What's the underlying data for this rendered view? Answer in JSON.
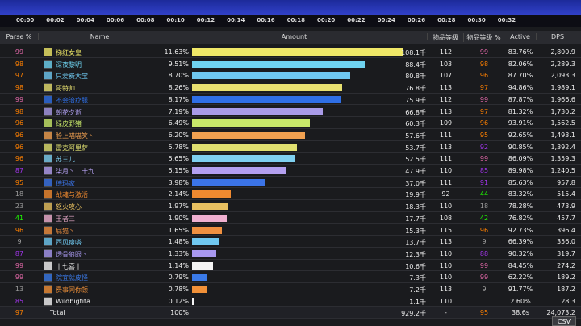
{
  "timeline": {
    "ticks": [
      "00:00",
      "00:02",
      "00:04",
      "00:06",
      "00:08",
      "00:10",
      "00:12",
      "00:14",
      "00:16",
      "00:18",
      "00:20",
      "00:22",
      "00:24",
      "00:26",
      "00:28",
      "00:30",
      "00:32"
    ]
  },
  "table": {
    "headers": [
      "Parse %",
      "Name",
      "Amount",
      "物品等级",
      "物品等级 %",
      "Active",
      "DPS"
    ],
    "rows": [
      {
        "parse": 99,
        "name": "梯红女皇",
        "pct": "11.63%",
        "amount": "108.1千",
        "ilvl": 112,
        "ilvl_pct": 99,
        "active": "83.76%",
        "dps": "2,800.9",
        "color": "#f0e868"
      },
      {
        "parse": 98,
        "name": "深夜黎明",
        "pct": "9.51%",
        "amount": "88.4千",
        "ilvl": 103,
        "ilvl_pct": 98,
        "active": "82.06%",
        "dps": "2,289.3",
        "color": "#6fd3f0"
      },
      {
        "parse": 97,
        "name": "只爱费大宝",
        "pct": "8.70%",
        "amount": "80.8千",
        "ilvl": 107,
        "ilvl_pct": 96,
        "active": "87.70%",
        "dps": "2,093.3",
        "color": "#6fc8f0"
      },
      {
        "parse": 98,
        "name": "哥特帅",
        "pct": "8.26%",
        "amount": "76.8千",
        "ilvl": 113,
        "ilvl_pct": 97,
        "active": "94.86%",
        "dps": "1,989.1",
        "color": "#e8e070"
      },
      {
        "parse": 99,
        "name": "不会治疗服",
        "pct": "8.17%",
        "amount": "75.9千",
        "ilvl": 112,
        "ilvl_pct": 99,
        "active": "87.87%",
        "dps": "1,966.6",
        "color": "#2f6fe6"
      },
      {
        "parse": 98,
        "name": "朝花夕逝",
        "pct": "7.19%",
        "amount": "66.8千",
        "ilvl": 113,
        "ilvl_pct": 97,
        "active": "81.32%",
        "dps": "1,730.2",
        "color": "#a99be8"
      },
      {
        "parse": 96,
        "name": "绿皮野猪",
        "pct": "6.49%",
        "amount": "60.3千",
        "ilvl": 109,
        "ilvl_pct": 96,
        "active": "93.91%",
        "dps": "1,562.5",
        "color": "#c8e86a"
      },
      {
        "parse": 96,
        "name": "脸上喵喵笑丶",
        "pct": "6.20%",
        "amount": "57.6千",
        "ilvl": 111,
        "ilvl_pct": 95,
        "active": "92.65%",
        "dps": "1,493.1",
        "color": "#f0a050"
      },
      {
        "parse": 96,
        "name": "雷克阿里萨",
        "pct": "5.78%",
        "amount": "53.7千",
        "ilvl": 113,
        "ilvl_pct": 92,
        "active": "90.85%",
        "dps": "1,392.4",
        "color": "#e0e070"
      },
      {
        "parse": 96,
        "name": "苏三儿",
        "pct": "5.65%",
        "amount": "52.5千",
        "ilvl": 111,
        "ilvl_pct": 99,
        "active": "86.09%",
        "dps": "1,359.3",
        "color": "#7fd0f0"
      },
      {
        "parse": 87,
        "name": "柒月丶二十九",
        "pct": "5.15%",
        "amount": "47.9千",
        "ilvl": 110,
        "ilvl_pct": 85,
        "active": "89.98%",
        "dps": "1,240.5",
        "color": "#b4a0f0"
      },
      {
        "parse": 95,
        "name": "德玛家",
        "pct": "3.98%",
        "amount": "37.0千",
        "ilvl": 111,
        "ilvl_pct": 91,
        "active": "85.63%",
        "dps": "957.8",
        "color": "#3b74e8"
      },
      {
        "parse": 18,
        "name": "战魂与激活",
        "pct": "2.14%",
        "amount": "19.9千",
        "ilvl": 92,
        "ilvl_pct": 44,
        "active": "83.32%",
        "dps": "515.4",
        "color": "#f08a30"
      },
      {
        "parse": 23,
        "name": "怒火攻心",
        "pct": "1.97%",
        "amount": "18.3千",
        "ilvl": 110,
        "ilvl_pct": 18,
        "active": "78.28%",
        "dps": "473.9",
        "color": "#e8c060"
      },
      {
        "parse": 41,
        "name": "王者三",
        "pct": "1.90%",
        "amount": "17.7千",
        "ilvl": 108,
        "ilvl_pct": 42,
        "active": "76.82%",
        "dps": "457.7",
        "color": "#f0b0d0"
      },
      {
        "parse": 96,
        "name": "屁猫丶",
        "pct": "1.65%",
        "amount": "15.3千",
        "ilvl": 115,
        "ilvl_pct": 96,
        "active": "92.73%",
        "dps": "396.4",
        "color": "#f09040"
      },
      {
        "parse": 9,
        "name": "西风瘦嗒",
        "pct": "1.48%",
        "amount": "13.7千",
        "ilvl": 113,
        "ilvl_pct": 9,
        "active": "66.39%",
        "dps": "356.0",
        "color": "#70c8f0"
      },
      {
        "parse": 87,
        "name": "透骨狼眼丶",
        "pct": "1.33%",
        "amount": "12.3千",
        "ilvl": 110,
        "ilvl_pct": 88,
        "active": "90.32%",
        "dps": "319.7",
        "color": "#a898f0"
      },
      {
        "parse": 99,
        "name": "丨七喜丨",
        "pct": "1.14%",
        "amount": "10.6千",
        "ilvl": 110,
        "ilvl_pct": 99,
        "active": "84.45%",
        "dps": "274.2",
        "color": "#f4f4f4"
      },
      {
        "parse": 99,
        "name": "院宜就皮怪",
        "pct": "0.79%",
        "amount": "7.3千",
        "ilvl": 110,
        "ilvl_pct": 99,
        "active": "62.22%",
        "dps": "189.2",
        "color": "#3a7ae8"
      },
      {
        "parse": 13,
        "name": "费事同你顿",
        "pct": "0.78%",
        "amount": "7.2千",
        "ilvl": 113,
        "ilvl_pct": 9,
        "active": "91.77%",
        "dps": "187.2",
        "color": "#f09038"
      },
      {
        "parse": 85,
        "name": "Wildbigtita",
        "pct": "0.12%",
        "amount": "1.1千",
        "ilvl": 110,
        "active": "2.60%",
        "dps": "28.3",
        "color": "#f4f4f4"
      }
    ],
    "total": {
      "parse": 97,
      "name": "Total",
      "pct": "100%",
      "amount": "929.2千",
      "ilvl": "-",
      "ilvl_pct": 95,
      "active": "38.6s",
      "dps": "24,073.2"
    }
  },
  "button": "CSV"
}
